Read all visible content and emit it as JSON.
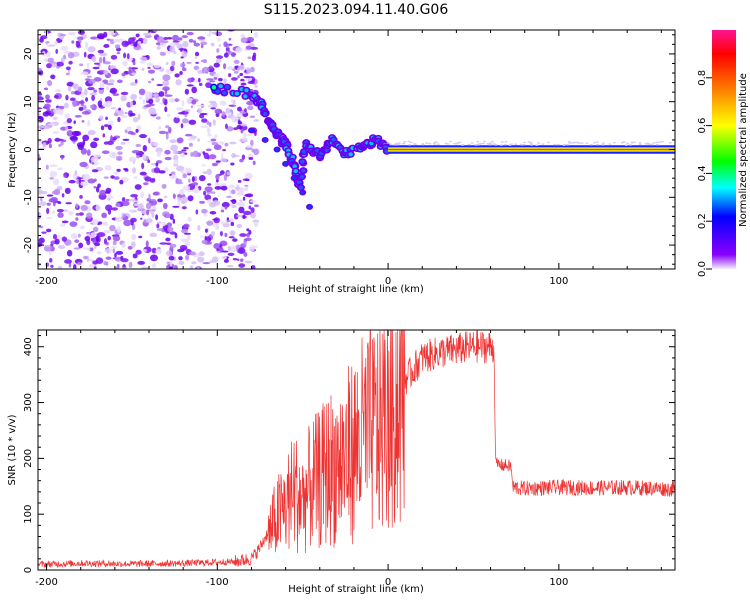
{
  "title": "S115.2023.094.11.40.G06",
  "chart_data": [
    {
      "type": "heatmap",
      "xlabel": "Height of straight line (km)",
      "ylabel": "Frequency (Hz)",
      "xlim": [
        -205,
        168
      ],
      "ylim": [
        -25,
        25
      ],
      "xticks": [
        -200,
        -100,
        0,
        100
      ],
      "yticks": [
        20,
        10,
        0,
        -10,
        -20
      ],
      "colorbar": {
        "label": "Normalized spectral amplitude",
        "range": [
          0,
          1
        ],
        "ticks": [
          "0.0",
          "0.2",
          "0.4",
          "0.6",
          "0.8"
        ],
        "colors": [
          "#f4eefe",
          "#8b00ff",
          "#0000ff",
          "#00ffff",
          "#00ff00",
          "#ffff00",
          "#ff7f00",
          "#ff0000",
          "#ff1493"
        ]
      },
      "features": {
        "noise_region_x": [
          -205,
          -80
        ],
        "dominant_frequency_hz": 0,
        "signal_track": [
          {
            "x": -102,
            "y": 13
          },
          {
            "x": -80,
            "y": 11.5
          },
          {
            "x": -75,
            "y": 10
          },
          {
            "x": -70,
            "y": 6
          },
          {
            "x": -65,
            "y": 3
          },
          {
            "x": -60,
            "y": 1
          },
          {
            "x": -55,
            "y": -3
          },
          {
            "x": -52,
            "y": -8
          },
          {
            "x": -48,
            "y": 1
          },
          {
            "x": -40,
            "y": -1
          },
          {
            "x": -33,
            "y": 2
          },
          {
            "x": -25,
            "y": -1
          },
          {
            "x": -15,
            "y": 0.5
          },
          {
            "x": -8,
            "y": 2
          },
          {
            "x": 0,
            "y": 0
          },
          {
            "x": 168,
            "y": 0
          }
        ]
      }
    },
    {
      "type": "line",
      "xlabel": "Height of straight line (km)",
      "ylabel": "SNR (10 * v/v)",
      "xlim": [
        -205,
        168
      ],
      "ylim": [
        0,
        430
      ],
      "xticks": [
        -200,
        -100,
        0,
        100
      ],
      "yticks": [
        0,
        100,
        200,
        300,
        400
      ],
      "color": "#ee3333",
      "series": [
        {
          "x": [
            -205,
            -180,
            -150,
            -120,
            -100,
            -90,
            -80,
            -75,
            -70,
            -65,
            -60,
            -55,
            -50,
            -45,
            -40,
            -35,
            -30,
            -25,
            -20,
            -15,
            -10,
            -5,
            0,
            5,
            10,
            15,
            20,
            25,
            30,
            35,
            40,
            45,
            50,
            55,
            60,
            62,
            63,
            65,
            70,
            72,
            73,
            80,
            100,
            120,
            140,
            168
          ],
          "y": [
            10,
            12,
            11,
            12,
            14,
            15,
            20,
            40,
            70,
            100,
            120,
            150,
            130,
            160,
            170,
            190,
            200,
            210,
            230,
            250,
            260,
            270,
            300,
            320,
            340,
            360,
            380,
            385,
            390,
            392,
            395,
            398,
            400,
            400,
            400,
            398,
            190,
            188,
            187,
            185,
            148,
            146,
            148,
            147,
            148,
            145
          ]
        }
      ]
    }
  ]
}
